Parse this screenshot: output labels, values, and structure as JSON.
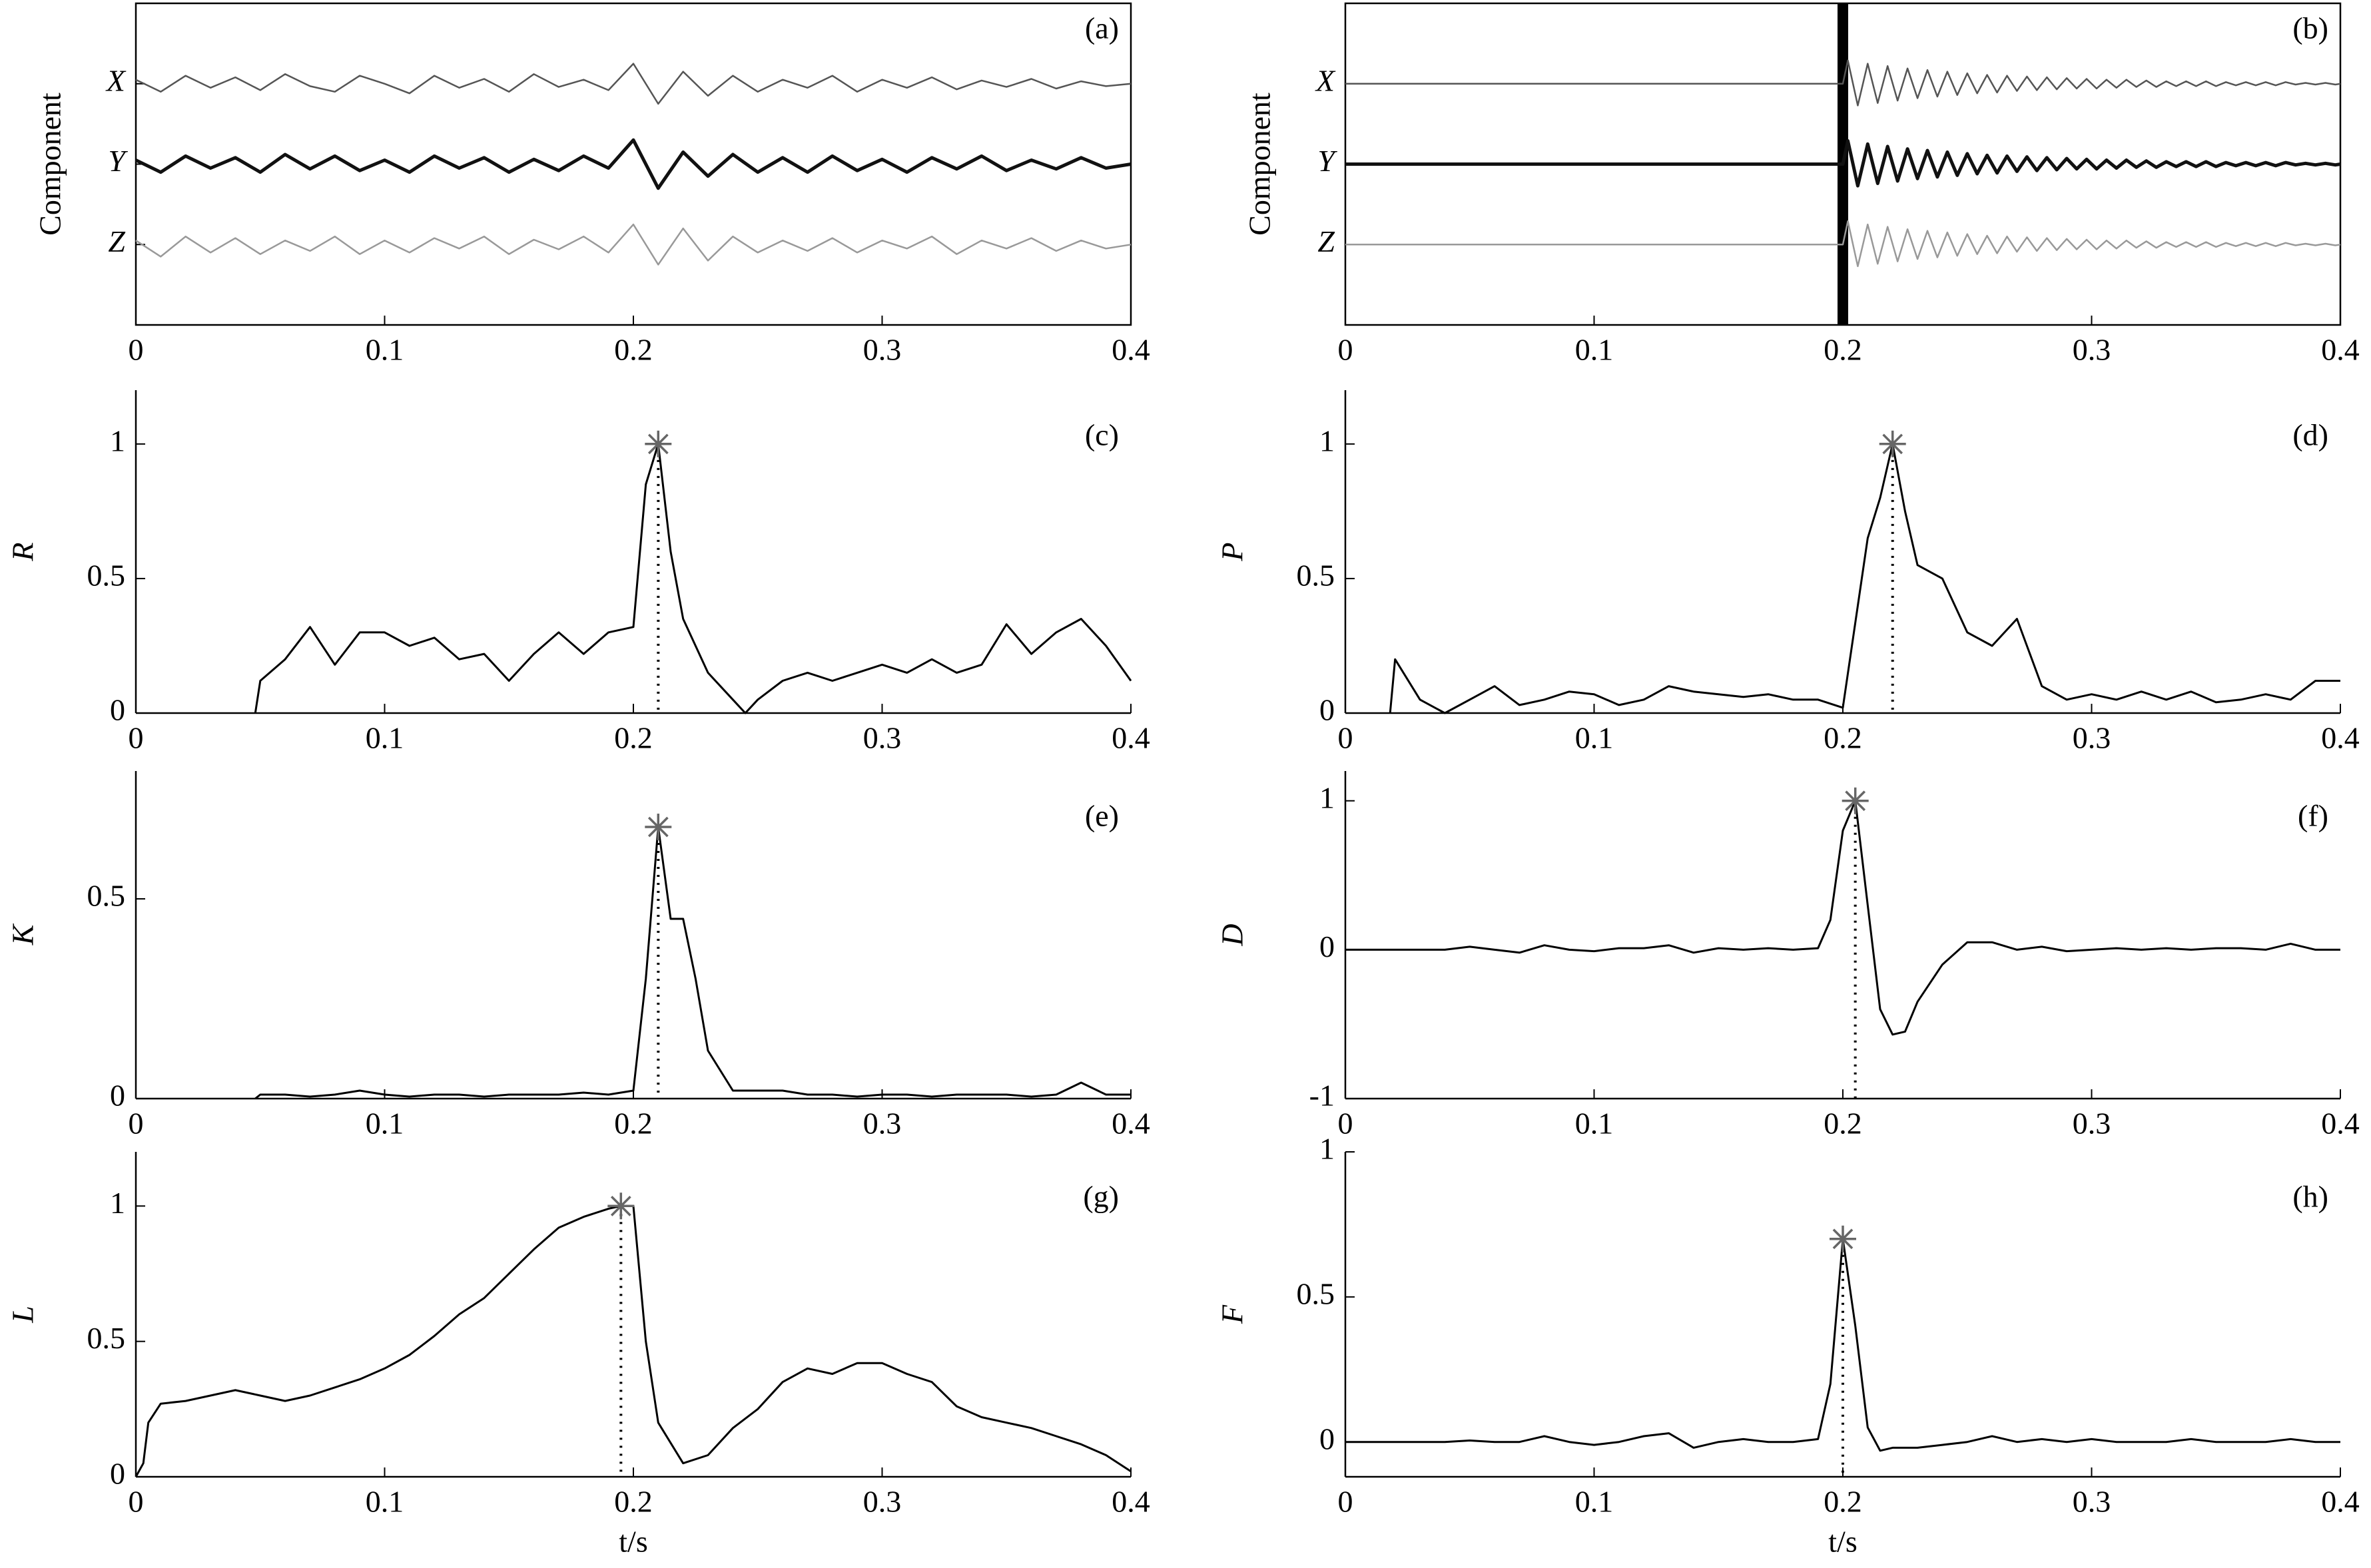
{
  "chart_data": [
    {
      "type": "line",
      "label": "(a)",
      "ylabel": "Component",
      "box": true,
      "line_width": [
        2.5,
        5,
        2.5
      ],
      "xlim": [
        0,
        0.4
      ],
      "xticks": [
        0,
        0.1,
        0.2,
        0.3,
        0.4
      ],
      "ylim": [
        -2,
        2
      ],
      "yticks": [
        {
          "value": 1,
          "label": "X"
        },
        {
          "value": 0,
          "label": "Y"
        },
        {
          "value": -1,
          "label": "Z"
        }
      ],
      "x": [
        0,
        0.01,
        0.02,
        0.03,
        0.04,
        0.05,
        0.06,
        0.07,
        0.08,
        0.09,
        0.1,
        0.11,
        0.12,
        0.13,
        0.14,
        0.15,
        0.16,
        0.17,
        0.18,
        0.19,
        0.2,
        0.21,
        0.22,
        0.23,
        0.24,
        0.25,
        0.26,
        0.27,
        0.28,
        0.29,
        0.3,
        0.31,
        0.32,
        0.33,
        0.34,
        0.35,
        0.36,
        0.37,
        0.38,
        0.39,
        0.4
      ],
      "series": [
        {
          "color": "#555555",
          "values": [
            1.05,
            0.9,
            1.1,
            0.95,
            1.08,
            0.92,
            1.12,
            0.97,
            0.9,
            1.1,
            1.0,
            0.88,
            1.1,
            0.95,
            1.06,
            0.9,
            1.12,
            0.96,
            1.05,
            0.92,
            1.25,
            0.75,
            1.15,
            0.85,
            1.1,
            0.9,
            1.05,
            0.95,
            1.1,
            0.9,
            1.05,
            0.95,
            1.08,
            0.93,
            1.04,
            0.96,
            1.06,
            0.94,
            1.03,
            0.97,
            1.0
          ]
        },
        {
          "color": "#111111",
          "values": [
            0.05,
            -0.1,
            0.1,
            -0.05,
            0.08,
            -0.1,
            0.12,
            -0.06,
            0.1,
            -0.08,
            0.05,
            -0.1,
            0.1,
            -0.05,
            0.08,
            -0.1,
            0.06,
            -0.08,
            0.1,
            -0.05,
            0.3,
            -0.3,
            0.15,
            -0.15,
            0.12,
            -0.1,
            0.08,
            -0.1,
            0.1,
            -0.08,
            0.06,
            -0.1,
            0.08,
            -0.06,
            0.1,
            -0.08,
            0.05,
            -0.06,
            0.08,
            -0.05,
            0.0
          ]
        },
        {
          "color": "#999999",
          "values": [
            -0.95,
            -1.15,
            -0.9,
            -1.1,
            -0.92,
            -1.12,
            -0.95,
            -1.08,
            -0.9,
            -1.12,
            -0.95,
            -1.1,
            -0.92,
            -1.05,
            -0.9,
            -1.12,
            -0.94,
            -1.06,
            -0.9,
            -1.1,
            -0.75,
            -1.25,
            -0.8,
            -1.2,
            -0.9,
            -1.1,
            -0.95,
            -1.08,
            -0.92,
            -1.1,
            -0.95,
            -1.05,
            -0.9,
            -1.12,
            -0.95,
            -1.05,
            -0.92,
            -1.08,
            -0.95,
            -1.05,
            -1.0
          ]
        }
      ]
    },
    {
      "type": "line",
      "label": "(b)",
      "ylabel": "Component",
      "box": true,
      "line_width": [
        2.5,
        5,
        2.5
      ],
      "vline": 0.2,
      "xlim": [
        0,
        0.4
      ],
      "xticks": [
        0,
        0.1,
        0.2,
        0.3,
        0.4
      ],
      "ylim": [
        -2,
        2
      ],
      "yticks": [
        {
          "value": 1,
          "label": "X"
        },
        {
          "value": 0,
          "label": "Y"
        },
        {
          "value": -1,
          "label": "Z"
        }
      ],
      "x": [
        0,
        0.2,
        0.202,
        0.206,
        0.21,
        0.214,
        0.218,
        0.222,
        0.226,
        0.23,
        0.234,
        0.238,
        0.242,
        0.246,
        0.25,
        0.254,
        0.258,
        0.262,
        0.266,
        0.27,
        0.274,
        0.278,
        0.282,
        0.286,
        0.29,
        0.294,
        0.298,
        0.302,
        0.306,
        0.31,
        0.314,
        0.318,
        0.322,
        0.326,
        0.33,
        0.334,
        0.338,
        0.342,
        0.346,
        0.35,
        0.354,
        0.358,
        0.362,
        0.366,
        0.37,
        0.374,
        0.378,
        0.382,
        0.386,
        0.39,
        0.394,
        0.398,
        0.4
      ],
      "series": [
        {
          "color": "#555555",
          "values": [
            1,
            1,
            1.29,
            0.73,
            1.25,
            0.76,
            1.22,
            0.79,
            1.19,
            0.82,
            1.17,
            0.84,
            1.15,
            0.86,
            1.13,
            0.88,
            1.11,
            0.89,
            1.1,
            0.91,
            1.09,
            0.92,
            1.08,
            0.93,
            1.07,
            0.94,
            1.06,
            0.94,
            1.05,
            0.95,
            1.05,
            0.96,
            1.04,
            0.96,
            1.03,
            0.97,
            1.03,
            0.97,
            1.03,
            0.97,
            1.02,
            0.98,
            1.02,
            0.98,
            1.02,
            0.98,
            1.02,
            0.99,
            1.01,
            0.99,
            1.01,
            0.99,
            1
          ]
        },
        {
          "color": "#111111",
          "values": [
            0,
            0,
            0.29,
            -0.27,
            0.25,
            -0.24,
            0.22,
            -0.21,
            0.19,
            -0.18,
            0.17,
            -0.16,
            0.15,
            -0.14,
            0.13,
            -0.12,
            0.11,
            -0.11,
            0.1,
            -0.09,
            0.09,
            -0.08,
            0.08,
            -0.07,
            0.07,
            -0.06,
            0.06,
            -0.06,
            0.05,
            -0.05,
            0.05,
            -0.04,
            0.04,
            -0.04,
            0.03,
            -0.03,
            0.03,
            -0.03,
            0.03,
            -0.03,
            0.02,
            -0.02,
            0.02,
            -0.02,
            0.02,
            -0.02,
            0.02,
            -0.01,
            0.01,
            -0.01,
            0.01,
            -0.01,
            0
          ]
        },
        {
          "color": "#999999",
          "values": [
            -1,
            -1,
            -0.71,
            -1.27,
            -0.75,
            -1.24,
            -0.78,
            -1.21,
            -0.81,
            -1.18,
            -0.83,
            -1.16,
            -0.85,
            -1.14,
            -0.87,
            -1.12,
            -0.89,
            -1.11,
            -0.9,
            -1.09,
            -0.91,
            -1.08,
            -0.92,
            -1.07,
            -0.93,
            -1.06,
            -0.94,
            -1.06,
            -0.95,
            -1.05,
            -0.95,
            -1.04,
            -0.96,
            -1.04,
            -0.97,
            -1.03,
            -0.97,
            -1.03,
            -0.97,
            -1.03,
            -0.98,
            -1.02,
            -0.98,
            -1.02,
            -0.98,
            -1.02,
            -0.98,
            -1.01,
            -0.99,
            -1.01,
            -0.99,
            -1.01,
            -1
          ]
        }
      ]
    },
    {
      "type": "line",
      "label": "(c)",
      "ylabel": "R",
      "box": false,
      "xlim": [
        0,
        0.4
      ],
      "xticks": [
        0,
        0.1,
        0.2,
        0.3,
        0.4
      ],
      "ylim": [
        0,
        1.2
      ],
      "yticks": [
        0,
        0.5,
        1
      ],
      "marker": {
        "x": 0.21,
        "y": 1,
        "color": "#666666"
      },
      "x": [
        0.048,
        0.05,
        0.06,
        0.07,
        0.08,
        0.09,
        0.1,
        0.11,
        0.12,
        0.13,
        0.14,
        0.15,
        0.16,
        0.17,
        0.18,
        0.19,
        0.2,
        0.205,
        0.21,
        0.215,
        0.22,
        0.23,
        0.24,
        0.245,
        0.25,
        0.26,
        0.27,
        0.28,
        0.29,
        0.3,
        0.31,
        0.32,
        0.33,
        0.34,
        0.35,
        0.36,
        0.37,
        0.38,
        0.39,
        0.4
      ],
      "series": [
        {
          "color": "#000000",
          "values": [
            0.0,
            0.12,
            0.2,
            0.32,
            0.18,
            0.3,
            0.3,
            0.25,
            0.28,
            0.2,
            0.22,
            0.12,
            0.22,
            0.3,
            0.22,
            0.3,
            0.32,
            0.85,
            1.0,
            0.6,
            0.35,
            0.15,
            0.05,
            0.0,
            0.05,
            0.12,
            0.15,
            0.12,
            0.15,
            0.18,
            0.15,
            0.2,
            0.15,
            0.18,
            0.33,
            0.22,
            0.3,
            0.35,
            0.25,
            0.12
          ]
        }
      ]
    },
    {
      "type": "line",
      "label": "(d)",
      "ylabel": "P",
      "box": false,
      "xlim": [
        0,
        0.4
      ],
      "xticks": [
        0,
        0.1,
        0.2,
        0.3,
        0.4
      ],
      "ylim": [
        0,
        1.2
      ],
      "yticks": [
        0,
        0.5,
        1
      ],
      "marker": {
        "x": 0.22,
        "y": 1,
        "color": "#666666"
      },
      "x": [
        0.018,
        0.02,
        0.03,
        0.04,
        0.05,
        0.06,
        0.07,
        0.08,
        0.09,
        0.1,
        0.11,
        0.12,
        0.13,
        0.14,
        0.15,
        0.16,
        0.17,
        0.18,
        0.19,
        0.2,
        0.21,
        0.215,
        0.22,
        0.225,
        0.23,
        0.24,
        0.25,
        0.26,
        0.27,
        0.28,
        0.29,
        0.3,
        0.31,
        0.32,
        0.33,
        0.34,
        0.35,
        0.36,
        0.37,
        0.38,
        0.39,
        0.4
      ],
      "series": [
        {
          "color": "#000000",
          "values": [
            0,
            0.2,
            0.05,
            0.0,
            0.05,
            0.1,
            0.03,
            0.05,
            0.08,
            0.07,
            0.03,
            0.05,
            0.1,
            0.08,
            0.07,
            0.06,
            0.07,
            0.05,
            0.05,
            0.02,
            0.65,
            0.8,
            1.0,
            0.75,
            0.55,
            0.5,
            0.3,
            0.25,
            0.35,
            0.1,
            0.05,
            0.07,
            0.05,
            0.08,
            0.05,
            0.08,
            0.04,
            0.05,
            0.07,
            0.05,
            0.12,
            0.12
          ]
        }
      ]
    },
    {
      "type": "line",
      "label": "(e)",
      "ylabel": "K",
      "box": false,
      "xlim": [
        0,
        0.4
      ],
      "xticks": [
        0,
        0.1,
        0.2,
        0.3,
        0.4
      ],
      "ylim": [
        0,
        0.82
      ],
      "yticks": [
        0,
        0.5
      ],
      "marker": {
        "x": 0.21,
        "y": 0.68,
        "color": "#666666"
      },
      "x": [
        0.048,
        0.05,
        0.06,
        0.07,
        0.08,
        0.09,
        0.1,
        0.11,
        0.12,
        0.13,
        0.14,
        0.15,
        0.16,
        0.17,
        0.18,
        0.19,
        0.2,
        0.205,
        0.21,
        0.215,
        0.22,
        0.225,
        0.23,
        0.24,
        0.25,
        0.26,
        0.27,
        0.28,
        0.29,
        0.3,
        0.31,
        0.32,
        0.33,
        0.34,
        0.35,
        0.36,
        0.37,
        0.38,
        0.39,
        0.4
      ],
      "series": [
        {
          "color": "#000000",
          "values": [
            0.0,
            0.01,
            0.01,
            0.005,
            0.01,
            0.02,
            0.01,
            0.005,
            0.01,
            0.01,
            0.005,
            0.01,
            0.01,
            0.01,
            0.015,
            0.01,
            0.02,
            0.3,
            0.68,
            0.45,
            0.45,
            0.3,
            0.12,
            0.02,
            0.02,
            0.02,
            0.01,
            0.01,
            0.005,
            0.01,
            0.01,
            0.005,
            0.01,
            0.01,
            0.01,
            0.005,
            0.01,
            0.04,
            0.01,
            0.01
          ]
        }
      ]
    },
    {
      "type": "line",
      "label": "(f)",
      "ylabel": "D",
      "box": false,
      "xlim": [
        0,
        0.4
      ],
      "xticks": [
        0,
        0.1,
        0.2,
        0.3,
        0.4
      ],
      "ylim": [
        -1,
        1.2
      ],
      "yticks": [
        -1,
        0,
        1
      ],
      "marker": {
        "x": 0.205,
        "y": 1,
        "color": "#666666"
      },
      "x": [
        0,
        0.01,
        0.02,
        0.03,
        0.04,
        0.05,
        0.06,
        0.07,
        0.08,
        0.09,
        0.1,
        0.11,
        0.12,
        0.13,
        0.14,
        0.15,
        0.16,
        0.17,
        0.18,
        0.19,
        0.195,
        0.2,
        0.205,
        0.21,
        0.215,
        0.22,
        0.225,
        0.23,
        0.24,
        0.25,
        0.26,
        0.27,
        0.28,
        0.29,
        0.3,
        0.31,
        0.32,
        0.33,
        0.34,
        0.35,
        0.36,
        0.37,
        0.38,
        0.39,
        0.4
      ],
      "series": [
        {
          "color": "#000000",
          "values": [
            0,
            0,
            0,
            0,
            0,
            0.02,
            0,
            -0.02,
            0.03,
            0,
            -0.01,
            0.01,
            0.01,
            0.03,
            -0.02,
            0.01,
            0,
            0.01,
            0,
            0.01,
            0.2,
            0.8,
            1.0,
            0.3,
            -0.4,
            -0.57,
            -0.55,
            -0.35,
            -0.1,
            0.05,
            0.05,
            0,
            0.02,
            -0.01,
            0,
            0.01,
            0,
            0.01,
            0,
            0.01,
            0.01,
            0,
            0.04,
            0,
            0
          ]
        }
      ]
    },
    {
      "type": "line",
      "label": "(g)",
      "ylabel": "L",
      "xlabel": "t/s",
      "box": false,
      "xlim": [
        0,
        0.4
      ],
      "xticks": [
        0,
        0.1,
        0.2,
        0.3,
        0.4
      ],
      "ylim": [
        0,
        1.2
      ],
      "yticks": [
        0,
        0.5,
        1
      ],
      "marker": {
        "x": 0.195,
        "y": 1,
        "color": "#666666"
      },
      "x": [
        0,
        0.003,
        0.005,
        0.01,
        0.02,
        0.03,
        0.04,
        0.05,
        0.06,
        0.07,
        0.08,
        0.09,
        0.1,
        0.11,
        0.12,
        0.13,
        0.14,
        0.15,
        0.16,
        0.17,
        0.18,
        0.19,
        0.195,
        0.2,
        0.205,
        0.21,
        0.22,
        0.23,
        0.24,
        0.25,
        0.26,
        0.27,
        0.28,
        0.29,
        0.3,
        0.31,
        0.32,
        0.33,
        0.34,
        0.35,
        0.36,
        0.37,
        0.38,
        0.39,
        0.4
      ],
      "series": [
        {
          "color": "#000000",
          "values": [
            0,
            0.05,
            0.2,
            0.27,
            0.28,
            0.3,
            0.32,
            0.3,
            0.28,
            0.3,
            0.33,
            0.36,
            0.4,
            0.45,
            0.52,
            0.6,
            0.66,
            0.75,
            0.84,
            0.92,
            0.96,
            0.99,
            1.0,
            1.0,
            0.5,
            0.2,
            0.05,
            0.08,
            0.18,
            0.25,
            0.35,
            0.4,
            0.38,
            0.42,
            0.42,
            0.38,
            0.35,
            0.26,
            0.22,
            0.2,
            0.18,
            0.15,
            0.12,
            0.08,
            0.02
          ]
        }
      ]
    },
    {
      "type": "line",
      "label": "(h)",
      "ylabel": "F",
      "xlabel": "t/s",
      "box": false,
      "xlim": [
        0,
        0.4
      ],
      "xticks": [
        0,
        0.1,
        0.2,
        0.3,
        0.4
      ],
      "ylim": [
        -0.12,
        1
      ],
      "yticks": [
        0,
        0.5,
        1
      ],
      "marker": {
        "x": 0.2,
        "y": 0.7,
        "color": "#666666"
      },
      "x": [
        0,
        0.01,
        0.02,
        0.03,
        0.04,
        0.05,
        0.06,
        0.07,
        0.08,
        0.09,
        0.1,
        0.11,
        0.12,
        0.13,
        0.14,
        0.15,
        0.16,
        0.17,
        0.18,
        0.19,
        0.195,
        0.2,
        0.205,
        0.21,
        0.215,
        0.22,
        0.23,
        0.24,
        0.25,
        0.26,
        0.27,
        0.28,
        0.29,
        0.3,
        0.31,
        0.32,
        0.33,
        0.34,
        0.35,
        0.36,
        0.37,
        0.38,
        0.39,
        0.4
      ],
      "series": [
        {
          "color": "#000000",
          "values": [
            0,
            0,
            0,
            0,
            0,
            0.005,
            0,
            0,
            0.02,
            0,
            -0.01,
            0,
            0.02,
            0.03,
            -0.02,
            0,
            0.01,
            0,
            0,
            0.01,
            0.2,
            0.7,
            0.4,
            0.05,
            -0.03,
            -0.02,
            -0.02,
            -0.01,
            0,
            0.02,
            0,
            0.01,
            0,
            0.01,
            0,
            0,
            0,
            0.01,
            0,
            0,
            0,
            0.01,
            0,
            0
          ]
        }
      ]
    }
  ]
}
